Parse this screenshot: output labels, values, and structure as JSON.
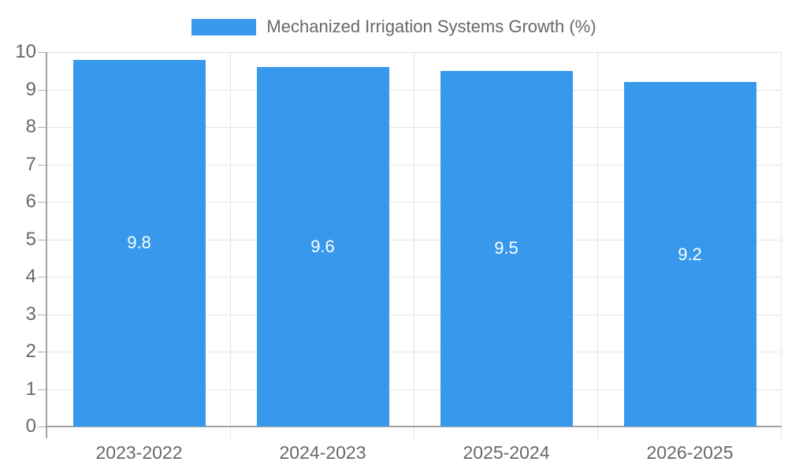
{
  "legend": {
    "label": "Mechanized Irrigation Systems Growth (%)"
  },
  "chart_data": {
    "type": "bar",
    "title": "Mechanized Irrigation Systems Growth (%)",
    "categories": [
      "2023-2022",
      "2024-2023",
      "2025-2024",
      "2026-2025"
    ],
    "values": [
      9.8,
      9.6,
      9.5,
      9.2
    ],
    "value_labels": [
      "9.8",
      "9.6",
      "9.5",
      "9.2"
    ],
    "xlabel": "",
    "ylabel": "",
    "ylim": [
      0,
      10
    ],
    "y_ticks": [
      0,
      1,
      2,
      3,
      4,
      5,
      6,
      7,
      8,
      9,
      10
    ],
    "grid": true,
    "legend_position": "top",
    "colors": {
      "bar": "#3899EC",
      "bar_value_text": "#FFFFFF",
      "axis_text": "#686868",
      "gridline": "#E4E4E4",
      "axis_line": "#A3A3A3",
      "tick_mark": "#ABABAB"
    }
  }
}
